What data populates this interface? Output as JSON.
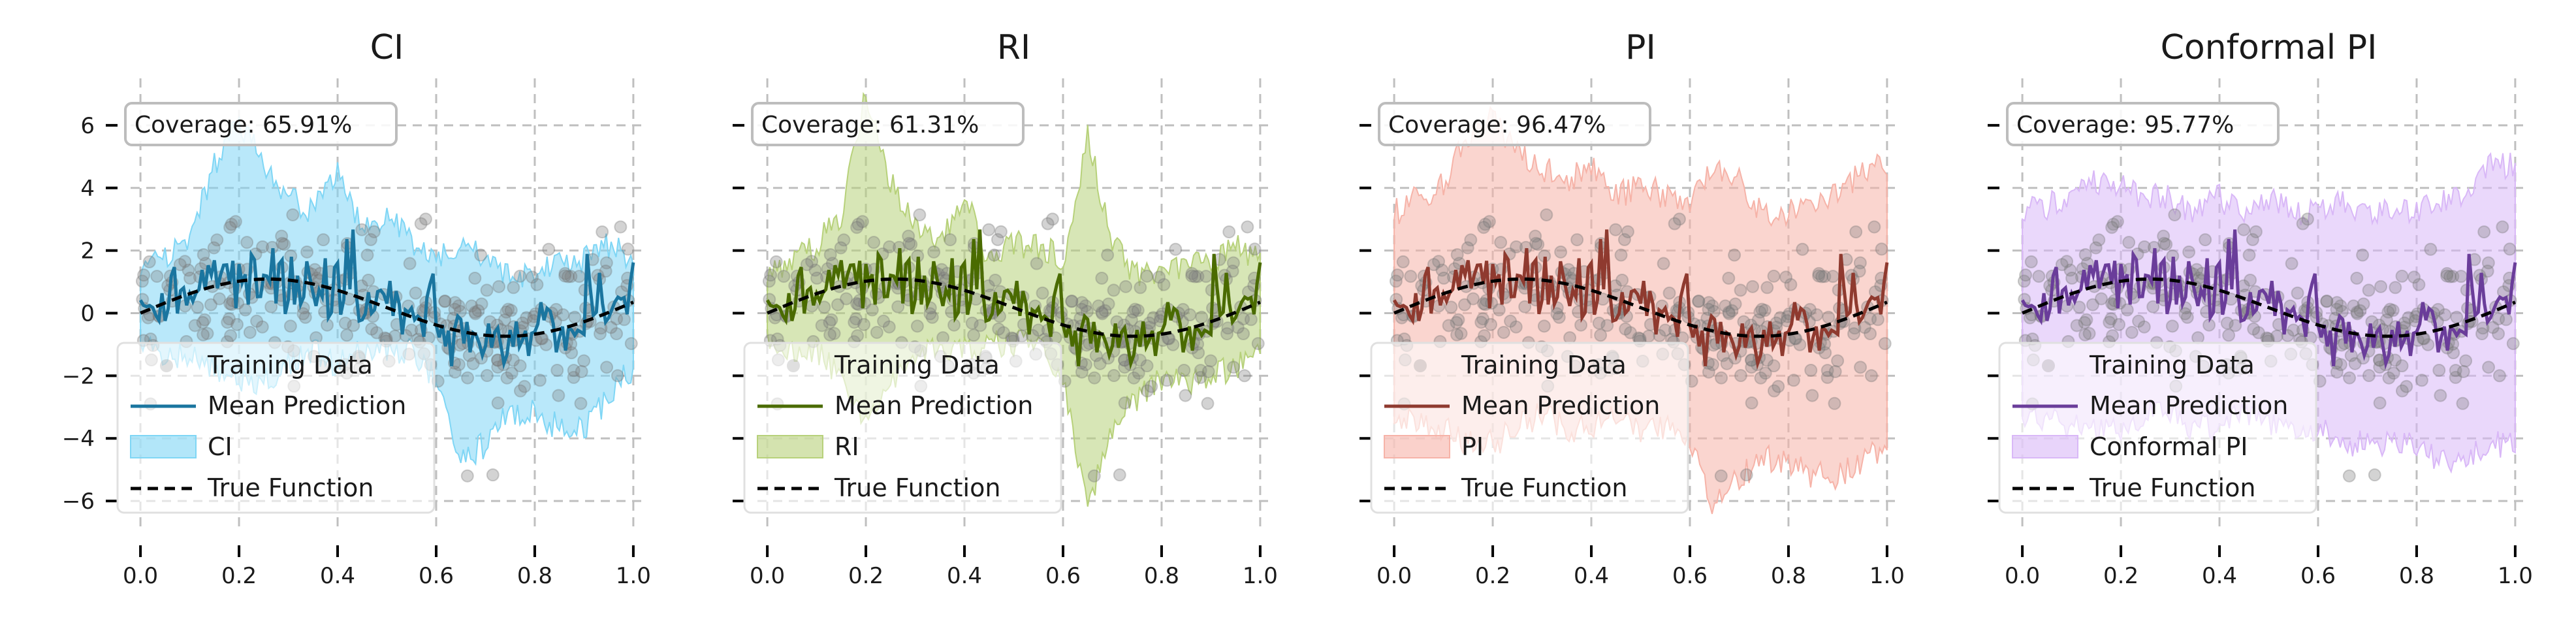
{
  "chart_data": [
    {
      "type": "line",
      "title": "CI",
      "xlabel": "",
      "ylabel": "",
      "xlim": [
        -0.02,
        1.02
      ],
      "ylim": [
        -7.0,
        7.5
      ],
      "xticks": [
        "0.0",
        "0.2",
        "0.4",
        "0.6",
        "0.8",
        "1.0"
      ],
      "yticks": [
        "6",
        "4",
        "2",
        "0",
        "−2",
        "−4",
        "−6"
      ],
      "grid": true,
      "legend_position": "lower-left",
      "coverage_label": "Coverage: 65.91%",
      "color": "#1a759f",
      "band_color": "#7fd6f5",
      "series": [
        {
          "name": "Training Data",
          "kind": "scatter"
        },
        {
          "name": "Mean Prediction",
          "kind": "line"
        },
        {
          "name": "CI",
          "kind": "band",
          "upper_x": [
            0.0,
            0.1,
            0.15,
            0.2,
            0.25,
            0.3,
            0.35,
            0.4,
            0.45,
            0.5,
            0.55,
            0.6,
            0.65,
            0.7,
            0.75,
            0.8,
            0.85,
            0.9,
            0.95,
            1.0
          ],
          "upper": [
            1.2,
            2.2,
            4.5,
            6.0,
            4.5,
            3.5,
            3.0,
            4.5,
            2.5,
            3.0,
            2.0,
            1.5,
            2.0,
            1.5,
            1.0,
            1.0,
            1.5,
            1.5,
            2.0,
            1.5
          ],
          "lower": [
            -1.0,
            -1.2,
            -1.5,
            -2.0,
            -2.0,
            -1.5,
            -1.0,
            -1.5,
            -1.0,
            -1.0,
            -1.0,
            -2.0,
            -4.5,
            -4.0,
            -3.0,
            -3.0,
            -3.5,
            -3.5,
            -2.5,
            -1.5
          ]
        },
        {
          "name": "True Function",
          "kind": "dashed"
        }
      ]
    },
    {
      "type": "line",
      "title": "RI",
      "xlabel": "",
      "ylabel": "",
      "xlim": [
        -0.02,
        1.02
      ],
      "ylim": [
        -7.0,
        7.5
      ],
      "xticks": [
        "0.0",
        "0.2",
        "0.4",
        "0.6",
        "0.8",
        "1.0"
      ],
      "yticks": [
        "",
        "",
        "",
        "",
        "",
        "",
        ""
      ],
      "grid": true,
      "legend_position": "lower-left",
      "coverage_label": "Coverage: 61.31%",
      "color": "#4a6b00",
      "band_color": "#b7d17a",
      "series": [
        {
          "name": "Training Data",
          "kind": "scatter"
        },
        {
          "name": "Mean Prediction",
          "kind": "line"
        },
        {
          "name": "RI",
          "kind": "band",
          "upper_x": [
            0.0,
            0.1,
            0.15,
            0.2,
            0.25,
            0.3,
            0.35,
            0.4,
            0.45,
            0.5,
            0.55,
            0.6,
            0.65,
            0.7,
            0.75,
            0.8,
            0.85,
            0.9,
            0.95,
            1.0
          ],
          "upper": [
            1.0,
            2.0,
            3.0,
            7.0,
            4.0,
            2.5,
            2.0,
            3.5,
            1.5,
            2.0,
            2.0,
            1.5,
            5.5,
            2.0,
            1.0,
            1.0,
            1.5,
            1.5,
            2.0,
            1.5
          ],
          "lower": [
            -0.8,
            -1.0,
            -2.0,
            -3.5,
            -2.0,
            -1.0,
            -0.8,
            -1.0,
            -0.8,
            -0.8,
            -0.8,
            -2.0,
            -6.0,
            -3.5,
            -2.5,
            -2.0,
            -2.0,
            -1.8,
            -1.5,
            -1.0
          ]
        },
        {
          "name": "True Function",
          "kind": "dashed"
        }
      ]
    },
    {
      "type": "line",
      "title": "PI",
      "xlabel": "",
      "ylabel": "",
      "xlim": [
        -0.02,
        1.02
      ],
      "ylim": [
        -7.0,
        7.5
      ],
      "xticks": [
        "0.0",
        "0.2",
        "0.4",
        "0.6",
        "0.8",
        "1.0"
      ],
      "yticks": [
        "",
        "",
        "",
        "",
        "",
        "",
        ""
      ],
      "grid": true,
      "legend_position": "lower-left",
      "coverage_label": "Coverage: 96.47%",
      "color": "#8f3a2f",
      "band_color": "#f6b3a8",
      "series": [
        {
          "name": "Training Data",
          "kind": "scatter"
        },
        {
          "name": "Mean Prediction",
          "kind": "line"
        },
        {
          "name": "PI",
          "kind": "band",
          "upper_x": [
            0.0,
            0.1,
            0.15,
            0.2,
            0.25,
            0.3,
            0.35,
            0.4,
            0.45,
            0.5,
            0.55,
            0.6,
            0.65,
            0.7,
            0.75,
            0.8,
            0.85,
            0.9,
            0.95,
            1.0
          ],
          "upper": [
            3.0,
            4.0,
            5.5,
            6.0,
            5.0,
            4.5,
            4.0,
            4.5,
            3.5,
            4.0,
            3.5,
            3.5,
            4.5,
            4.0,
            3.0,
            3.0,
            3.5,
            3.5,
            4.5,
            4.5
          ],
          "lower": [
            -3.0,
            -3.5,
            -4.0,
            -4.0,
            -3.5,
            -3.0,
            -3.5,
            -3.5,
            -3.0,
            -3.5,
            -3.5,
            -4.0,
            -6.0,
            -5.0,
            -4.5,
            -4.5,
            -5.0,
            -5.0,
            -4.5,
            -4.0
          ]
        },
        {
          "name": "True Function",
          "kind": "dashed"
        }
      ]
    },
    {
      "type": "line",
      "title": "Conformal PI",
      "xlabel": "",
      "ylabel": "",
      "xlim": [
        -0.02,
        1.02
      ],
      "ylim": [
        -7.0,
        7.5
      ],
      "xticks": [
        "0.0",
        "0.2",
        "0.4",
        "0.6",
        "0.8",
        "1.0"
      ],
      "yticks": [
        "",
        "",
        "",
        "",
        "",
        "",
        ""
      ],
      "grid": true,
      "legend_position": "lower-left",
      "coverage_label": "Coverage: 95.77%",
      "color": "#6a3d9a",
      "band_color": "#d9b8f7",
      "series": [
        {
          "name": "Training Data",
          "kind": "scatter"
        },
        {
          "name": "Mean Prediction",
          "kind": "line"
        },
        {
          "name": "Conformal PI",
          "kind": "band",
          "upper_x": [
            0.0,
            0.1,
            0.15,
            0.2,
            0.25,
            0.3,
            0.35,
            0.4,
            0.45,
            0.5,
            0.55,
            0.6,
            0.65,
            0.7,
            0.75,
            0.8,
            0.85,
            0.9,
            0.95,
            1.0
          ],
          "upper": [
            3.0,
            3.5,
            4.0,
            4.0,
            3.5,
            3.5,
            3.0,
            3.5,
            3.0,
            3.5,
            3.0,
            3.0,
            3.5,
            3.0,
            3.0,
            3.0,
            3.5,
            3.5,
            4.5,
            4.5
          ],
          "lower": [
            -3.0,
            -3.5,
            -3.5,
            -3.5,
            -3.0,
            -3.0,
            -3.5,
            -3.5,
            -3.0,
            -3.5,
            -3.5,
            -3.5,
            -4.0,
            -4.0,
            -4.0,
            -4.0,
            -4.5,
            -4.5,
            -4.0,
            -4.0
          ]
        },
        {
          "name": "True Function",
          "kind": "dashed"
        }
      ]
    }
  ]
}
